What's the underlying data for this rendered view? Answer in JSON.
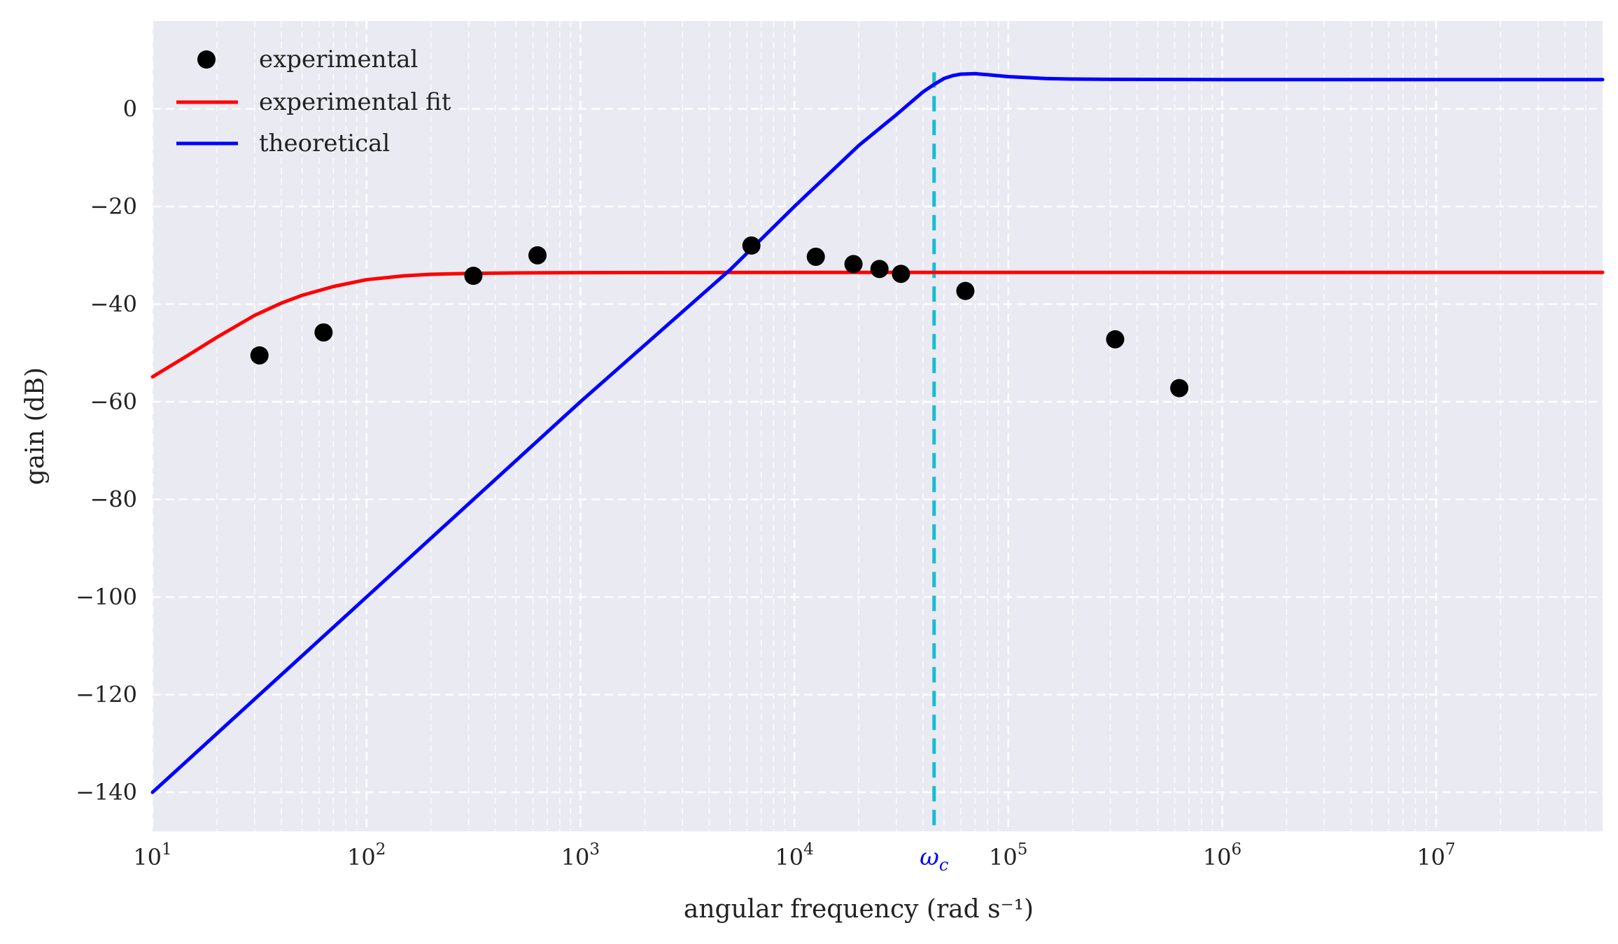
{
  "chart_data": {
    "type": "scatter",
    "title": "",
    "xlabel": "angular frequency (rad s⁻¹)",
    "ylabel": "gain (dB)",
    "xscale": "log",
    "xlim": [
      10,
      60000000
    ],
    "ylim": [
      -148,
      18
    ],
    "x_tick_values": [
      10,
      100,
      1000,
      10000,
      100000,
      1000000,
      10000000
    ],
    "x_tick_base": "10",
    "x_tick_exponents": [
      "1",
      "2",
      "3",
      "4",
      "5",
      "6",
      "7"
    ],
    "y_ticks": [
      0,
      -20,
      -40,
      -60,
      -80,
      -100,
      -120,
      -140
    ],
    "y_tick_labels": [
      "0",
      "−20",
      "−40",
      "−60",
      "−80",
      "−100",
      "−120",
      "−140"
    ],
    "grid": true,
    "minor_grid": true,
    "legend_position": "top-left",
    "background_color": "#eaeaf2",
    "grid_color": "#ffffff",
    "series": [
      {
        "name": "experimental",
        "kind": "scatter",
        "color": "#000000",
        "x": [
          31.6,
          63,
          316,
          630,
          6300,
          12600,
          18900,
          25000,
          31500,
          63000,
          316000,
          630000
        ],
        "y": [
          -50.5,
          -45.8,
          -34.2,
          -30,
          -28,
          -30.3,
          -31.8,
          -32.8,
          -33.8,
          -37.3,
          -47.2,
          -57.2
        ]
      },
      {
        "name": "experimental fit",
        "kind": "line",
        "color": "#ff0000",
        "x": [
          10,
          15,
          20,
          30,
          40,
          50,
          70,
          100,
          150,
          200,
          300,
          500,
          1000,
          10000,
          100000,
          1000000,
          10000000,
          60000000
        ],
        "y": [
          -54.9,
          -50.2,
          -46.8,
          -42.3,
          -39.8,
          -38.2,
          -36.4,
          -35.0,
          -34.2,
          -33.9,
          -33.7,
          -33.6,
          -33.55,
          -33.5,
          -33.5,
          -33.5,
          -33.5,
          -33.5
        ]
      },
      {
        "name": "theoretical",
        "kind": "line",
        "color": "#0000ff",
        "x": [
          10,
          100,
          1000,
          5000,
          10000,
          20000,
          30000,
          40000,
          45000,
          50000,
          55000,
          60000,
          70000,
          80000,
          100000,
          150000,
          200000,
          300000,
          1000000,
          10000000,
          60000000
        ],
        "y": [
          -140,
          -100,
          -60,
          -33,
          -20,
          -7.5,
          -1.2,
          3.5,
          5.0,
          6.2,
          6.8,
          7.1,
          7.2,
          7.0,
          6.6,
          6.2,
          6.1,
          6.05,
          6.0,
          6.0,
          6.0
        ]
      }
    ],
    "annotations": [
      {
        "kind": "vline",
        "x": 45000,
        "color": "#17becf",
        "style": "dashed",
        "label": "ωc",
        "label_base": "ω",
        "label_sub": "c",
        "label_color": "#0000ff"
      }
    ]
  }
}
